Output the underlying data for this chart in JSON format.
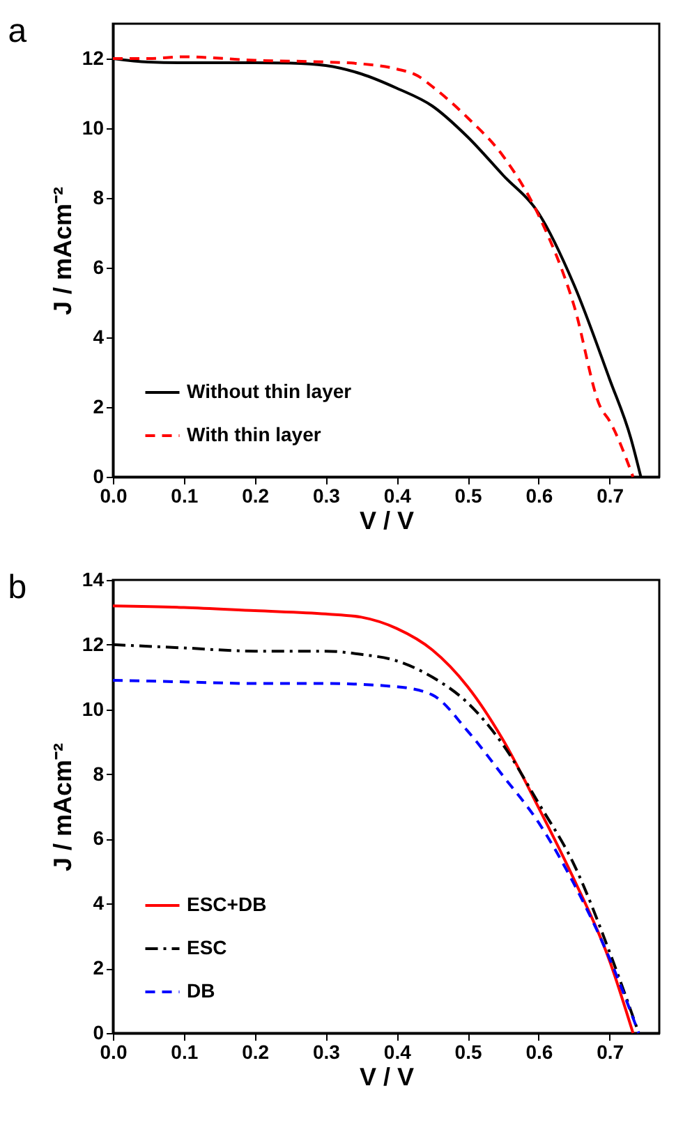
{
  "chart_data": [
    {
      "type": "line",
      "title": "a",
      "xlabel": "V / V",
      "ylabel": "J / mAcm⁻²",
      "xlim": [
        0,
        0.77
      ],
      "ylim": [
        0,
        13
      ],
      "xticks": [
        {
          "value": 0,
          "label": "0.0"
        },
        0.1,
        0.2,
        0.3,
        0.4,
        0.5,
        0.6,
        0.7
      ],
      "yticks": [
        0,
        2,
        4,
        6,
        8,
        10,
        12
      ],
      "grid": false,
      "legend": "bottom left",
      "marker": "none",
      "series": [
        {
          "name": "Without thin layer",
          "color": "#000000",
          "line_style": "solid",
          "x": [
            0,
            0.05,
            0.1,
            0.2,
            0.25,
            0.3,
            0.35,
            0.4,
            0.45,
            0.5,
            0.55,
            0.6,
            0.65,
            0.7,
            0.73,
            0.744
          ],
          "values": [
            12.0,
            11.9,
            11.88,
            11.88,
            11.87,
            11.8,
            11.56,
            11.15,
            10.64,
            9.75,
            8.65,
            7.56,
            5.5,
            2.8,
            1.1,
            0
          ]
        },
        {
          "name": "With thin layer",
          "color": "#ff0000",
          "line_style": "dashed",
          "x": [
            0,
            0.05,
            0.1,
            0.2,
            0.3,
            0.35,
            0.4,
            0.43,
            0.45,
            0.5,
            0.55,
            0.6,
            0.65,
            0.687,
            0.7,
            0.733
          ],
          "values": [
            12.0,
            12.0,
            12.05,
            11.95,
            11.9,
            11.85,
            11.7,
            11.5,
            11.2,
            10.3,
            9.2,
            7.5,
            4.9,
            2.0,
            1.6,
            0
          ]
        }
      ]
    },
    {
      "type": "line",
      "title": "b",
      "xlabel": "V / V",
      "ylabel": "J / mAcm⁻²",
      "xlim": [
        0,
        0.77
      ],
      "ylim": [
        0,
        14
      ],
      "xticks": [
        {
          "value": 0,
          "label": "0.0"
        },
        0.1,
        0.2,
        0.3,
        0.4,
        0.5,
        0.6,
        0.7
      ],
      "yticks": [
        0,
        2,
        4,
        6,
        8,
        10,
        12,
        14
      ],
      "grid": false,
      "legend": "bottom left",
      "marker": "none",
      "series": [
        {
          "name": "ESC+DB",
          "color": "#ff0000",
          "line_style": "solid",
          "x": [
            0,
            0.1,
            0.2,
            0.3,
            0.35,
            0.4,
            0.45,
            0.5,
            0.55,
            0.6,
            0.65,
            0.7,
            0.733
          ],
          "values": [
            13.2,
            13.15,
            13.05,
            12.95,
            12.85,
            12.5,
            11.84,
            10.7,
            9.05,
            6.96,
            4.74,
            2.23,
            0
          ]
        },
        {
          "name": "ESC",
          "color": "#000000",
          "line_style": "dashdot",
          "x": [
            0,
            0.1,
            0.2,
            0.3,
            0.35,
            0.4,
            0.45,
            0.5,
            0.55,
            0.6,
            0.65,
            0.7,
            0.741
          ],
          "values": [
            12.0,
            11.9,
            11.8,
            11.8,
            11.7,
            11.5,
            11.0,
            10.2,
            8.9,
            7.1,
            5.2,
            2.5,
            0
          ]
        },
        {
          "name": "DB",
          "color": "#0000ff",
          "line_style": "dashed",
          "x": [
            0,
            0.1,
            0.2,
            0.3,
            0.4,
            0.45,
            0.5,
            0.55,
            0.6,
            0.65,
            0.7,
            0.741
          ],
          "values": [
            10.9,
            10.85,
            10.8,
            10.8,
            10.7,
            10.45,
            9.33,
            7.94,
            6.5,
            4.6,
            2.3,
            0
          ]
        }
      ]
    }
  ]
}
